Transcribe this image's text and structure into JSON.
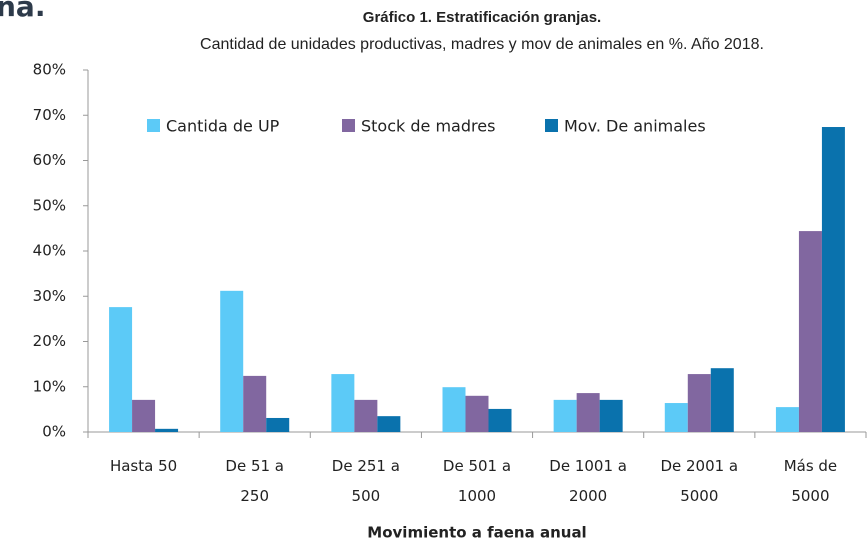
{
  "heading": "na.",
  "chart_data": {
    "type": "bar",
    "title": "Gráfico 1. Estratificación granjas.",
    "subtitle": "Cantidad de unidades productivas, madres y mov de animales  en %. Año 2018.",
    "x_label": "Movimiento a faena anual",
    "categories": [
      "Hasta 50",
      "De 51 a 250",
      "De 251 a 500",
      "De 501 a 1000",
      "De 1001 a 2000",
      "De 2001 a 5000",
      "Más de 5000"
    ],
    "series": [
      {
        "name": "Cantida de UP",
        "color": "#5ccaf7",
        "values": [
          27.6,
          31.2,
          12.8,
          9.9,
          7.1,
          6.4,
          5.5
        ]
      },
      {
        "name": "Stock de madres",
        "color": "#8167a0",
        "values": [
          7.1,
          12.4,
          7.1,
          8.0,
          8.6,
          12.8,
          44.4
        ]
      },
      {
        "name": "Mov. De animales",
        "color": "#0a72ad",
        "values": [
          0.7,
          3.1,
          3.5,
          5.1,
          7.1,
          14.1,
          67.4
        ]
      }
    ],
    "ylim": [
      0,
      80
    ],
    "yticks": [
      {
        "value": 0,
        "label": "0%"
      },
      {
        "value": 10,
        "label": "10%"
      },
      {
        "value": 20,
        "label": "20%"
      },
      {
        "value": 30,
        "label": "30%"
      },
      {
        "value": 40,
        "label": "40%"
      },
      {
        "value": 50,
        "label": "50%"
      },
      {
        "value": 60,
        "label": "60%"
      },
      {
        "value": 70,
        "label": "70%"
      },
      {
        "value": 80,
        "label": "80%"
      }
    ],
    "legend": "top"
  }
}
